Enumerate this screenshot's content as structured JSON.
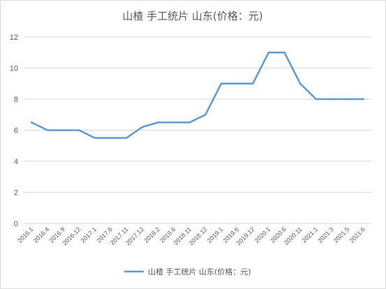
{
  "chart_data": {
    "type": "line",
    "title": "山楂 手工统片 山东(价格：元)",
    "categories": [
      "2016.1",
      "2016.4",
      "2016.9",
      "2016.12",
      "2017.1",
      "2017.6",
      "2017.11",
      "2017.12",
      "2018.2",
      "2018.6",
      "2018.11",
      "2018.12",
      "2019.1",
      "2019.6",
      "2019.12",
      "2020.1",
      "2020.6",
      "2020.11",
      "2021.1",
      "2021.3",
      "2021.5",
      "2021.6"
    ],
    "series": [
      {
        "name": "山楂 手工统片 山东(价格：元)",
        "color": "#5b9bd5",
        "values": [
          6.5,
          6,
          6,
          6,
          5.5,
          5.5,
          5.5,
          6.2,
          6.5,
          6.5,
          6.5,
          7,
          9,
          9,
          9,
          11,
          11,
          9,
          8,
          8,
          8,
          8
        ]
      }
    ],
    "ylim": [
      0,
      12
    ],
    "yticks": [
      "0",
      "2",
      "4",
      "6",
      "8",
      "10",
      "12"
    ],
    "grid": true,
    "legend_position": "bottom"
  }
}
